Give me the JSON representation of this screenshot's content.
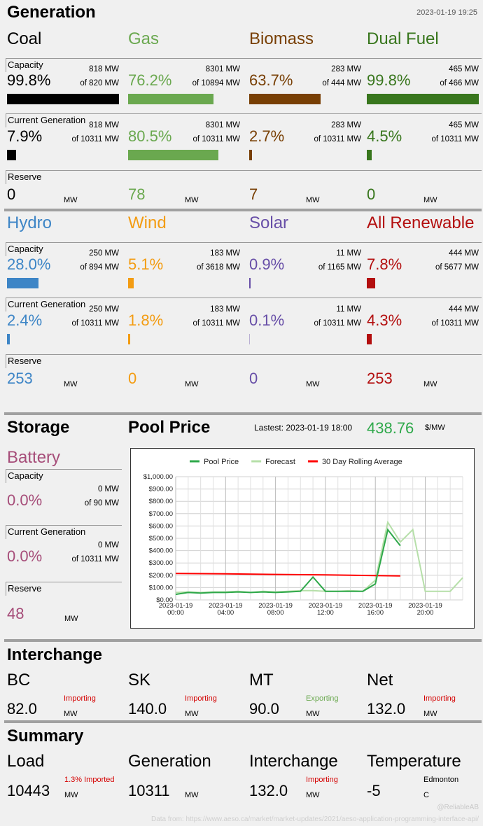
{
  "header": {
    "title": "Generation",
    "timestamp": "2023-01-19 19:25"
  },
  "colors": {
    "coal": "#000000",
    "gas": "#6aa84f",
    "biomass": "#783f04",
    "dual": "#38761d",
    "hydro": "#3d85c6",
    "wind": "#f39c12",
    "solar": "#674ea7",
    "renew": "#b30e0e",
    "battery": "#a64d79",
    "pool": "#2ea84a",
    "forecast": "#b6dfa9",
    "rolling": "#ff0000",
    "importing": "#d40000",
    "exporting": "#6aa84f"
  },
  "row_labels": {
    "capacity": "Capacity",
    "current": "Current Generation",
    "reserve": "Reserve"
  },
  "mw_unit": "MW",
  "fuels_top": [
    {
      "name": "Coal",
      "cap_pct": "99.8%",
      "cap_mw": "818 MW",
      "cap_of": "of 820 MW",
      "cap_frac": 0.998,
      "cur_pct": "7.9%",
      "cur_mw": "818 MW",
      "cur_of": "of 10311 MW",
      "cur_frac": 0.079,
      "reserve": "0"
    },
    {
      "name": "Gas",
      "cap_pct": "76.2%",
      "cap_mw": "8301 MW",
      "cap_of": "of 10894 MW",
      "cap_frac": 0.762,
      "cur_pct": "80.5%",
      "cur_mw": "8301 MW",
      "cur_of": "of 10311 MW",
      "cur_frac": 0.805,
      "reserve": "78"
    },
    {
      "name": "Biomass",
      "cap_pct": "63.7%",
      "cap_mw": "283 MW",
      "cap_of": "of 444 MW",
      "cap_frac": 0.637,
      "cur_pct": "2.7%",
      "cur_mw": "283 MW",
      "cur_of": "of 10311 MW",
      "cur_frac": 0.027,
      "reserve": "7"
    },
    {
      "name": "Dual Fuel",
      "cap_pct": "99.8%",
      "cap_mw": "465 MW",
      "cap_of": "of 466 MW",
      "cap_frac": 0.998,
      "cur_pct": "4.5%",
      "cur_mw": "465 MW",
      "cur_of": "of 10311 MW",
      "cur_frac": 0.045,
      "reserve": "0"
    }
  ],
  "fuels_mid": [
    {
      "name": "Hydro",
      "cap_pct": "28.0%",
      "cap_mw": "250 MW",
      "cap_of": "of 894 MW",
      "cap_frac": 0.28,
      "cur_pct": "2.4%",
      "cur_mw": "250 MW",
      "cur_of": "of 10311 MW",
      "cur_frac": 0.024,
      "reserve": "253"
    },
    {
      "name": "Wind",
      "cap_pct": "5.1%",
      "cap_mw": "183 MW",
      "cap_of": "of 3618 MW",
      "cap_frac": 0.051,
      "cur_pct": "1.8%",
      "cur_mw": "183 MW",
      "cur_of": "of 10311 MW",
      "cur_frac": 0.018,
      "reserve": "0"
    },
    {
      "name": "Solar",
      "cap_pct": "0.9%",
      "cap_mw": "11 MW",
      "cap_of": "of 1165 MW",
      "cap_frac": 0.009,
      "cur_pct": "0.1%",
      "cur_mw": "11 MW",
      "cur_of": "of 10311 MW",
      "cur_frac": 0.001,
      "reserve": "0"
    },
    {
      "name": "All Renewable",
      "cap_pct": "7.8%",
      "cap_mw": "444 MW",
      "cap_of": "of 5677 MW",
      "cap_frac": 0.078,
      "cur_pct": "4.3%",
      "cur_mw": "444 MW",
      "cur_of": "of 10311 MW",
      "cur_frac": 0.043,
      "reserve": "253"
    }
  ],
  "storage": {
    "title": "Storage",
    "name": "Battery",
    "cap_pct": "0.0%",
    "cap_mw": "0 MW",
    "cap_of": "of 90 MW",
    "cur_pct": "0.0%",
    "cur_mw": "0 MW",
    "cur_of": "of 10311 MW",
    "reserve": "48"
  },
  "pool_price": {
    "title": "Pool Price",
    "latest_label": "Lastest: 2023-01-19 18:00",
    "value": "438.76",
    "unit": "$/MW"
  },
  "chart_data": {
    "type": "line",
    "legend_position": "top",
    "grid": true,
    "x_ticks": [
      [
        "2023-01-19",
        "00:00"
      ],
      [
        "2023-01-19",
        "04:00"
      ],
      [
        "2023-01-19",
        "08:00"
      ],
      [
        "2023-01-19",
        "12:00"
      ],
      [
        "2023-01-19",
        "16:00"
      ],
      [
        "2023-01-19",
        "20:00"
      ]
    ],
    "y_ticks": [
      "$0.00",
      "$100.00",
      "$200.00",
      "$300.00",
      "$400.00",
      "$500.00",
      "$600.00",
      "$700.00",
      "$800.00",
      "$900.00",
      "$1,000.00"
    ],
    "ylim": [
      0,
      1000
    ],
    "xlim": [
      "2023-01-19 00:00",
      "2023-01-19 23:00"
    ],
    "series": [
      {
        "name": "Pool Price",
        "color": "#2ea84a",
        "x": [
          "2023-01-19 00:00",
          "2023-01-19 01:00",
          "2023-01-19 02:00",
          "2023-01-19 03:00",
          "2023-01-19 04:00",
          "2023-01-19 05:00",
          "2023-01-19 06:00",
          "2023-01-19 07:00",
          "2023-01-19 08:00",
          "2023-01-19 09:00",
          "2023-01-19 10:00",
          "2023-01-19 11:00",
          "2023-01-19 12:00",
          "2023-01-19 13:00",
          "2023-01-19 14:00",
          "2023-01-19 15:00",
          "2023-01-19 16:00",
          "2023-01-19 17:00",
          "2023-01-19 18:00"
        ],
        "y": [
          45,
          60,
          55,
          60,
          60,
          65,
          60,
          65,
          60,
          65,
          70,
          185,
          70,
          70,
          70,
          70,
          130,
          570,
          440
        ]
      },
      {
        "name": "Forecast",
        "color": "#b6dfa9",
        "x": [
          "2023-01-19 00:00",
          "2023-01-19 01:00",
          "2023-01-19 02:00",
          "2023-01-19 03:00",
          "2023-01-19 04:00",
          "2023-01-19 05:00",
          "2023-01-19 06:00",
          "2023-01-19 07:00",
          "2023-01-19 08:00",
          "2023-01-19 09:00",
          "2023-01-19 10:00",
          "2023-01-19 11:00",
          "2023-01-19 12:00",
          "2023-01-19 13:00",
          "2023-01-19 14:00",
          "2023-01-19 15:00",
          "2023-01-19 16:00",
          "2023-01-19 17:00",
          "2023-01-19 18:00",
          "2023-01-19 19:00",
          "2023-01-19 20:00",
          "2023-01-19 21:00",
          "2023-01-19 22:00",
          "2023-01-19 23:00"
        ],
        "y": [
          60,
          65,
          60,
          65,
          65,
          70,
          60,
          70,
          65,
          70,
          75,
          75,
          70,
          70,
          75,
          70,
          160,
          630,
          470,
          570,
          70,
          70,
          70,
          180
        ]
      },
      {
        "name": "30 Day Rolling Average",
        "color": "#ff0000",
        "x": [
          "2023-01-19 00:00",
          "2023-01-19 04:00",
          "2023-01-19 08:00",
          "2023-01-19 12:00",
          "2023-01-19 16:00",
          "2023-01-19 18:00"
        ],
        "y": [
          215,
          212,
          207,
          203,
          198,
          195
        ]
      }
    ]
  },
  "interchange": {
    "title": "Interchange",
    "items": [
      {
        "name": "BC",
        "value": "82.0",
        "status": "Importing",
        "status_color": "#d40000"
      },
      {
        "name": "SK",
        "value": "140.0",
        "status": "Importing",
        "status_color": "#d40000"
      },
      {
        "name": "MT",
        "value": "90.0",
        "status": "Exporting",
        "status_color": "#6aa84f"
      },
      {
        "name": "Net",
        "value": "132.0",
        "status": "Importing",
        "status_color": "#d40000"
      }
    ]
  },
  "summary": {
    "title": "Summary",
    "load": {
      "label": "Load",
      "value": "10443",
      "note": "1.3% Imported",
      "unit": "MW"
    },
    "generation": {
      "label": "Generation",
      "value": "10311",
      "unit": "MW"
    },
    "interchange": {
      "label": "Interchange",
      "value": "132.0",
      "note": "Importing",
      "unit": "MW"
    },
    "temperature": {
      "label": "Temperature",
      "value": "-5",
      "city": "Edmonton",
      "unit": "C"
    }
  },
  "footer": {
    "handle": "@ReliableAB",
    "source": "Data from: https://www.aeso.ca/market/market-updates/2021/aeso-application-programming-interface-api/"
  }
}
